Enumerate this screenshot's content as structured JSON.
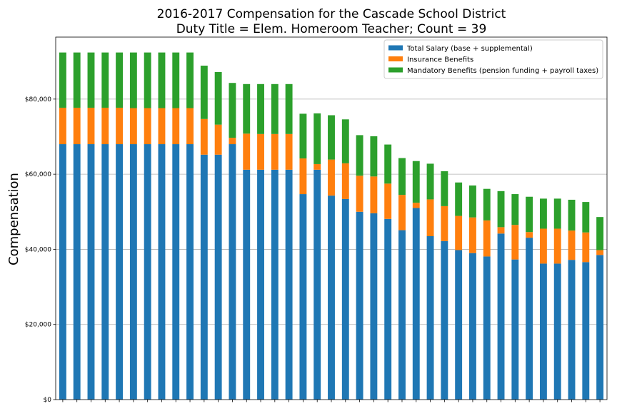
{
  "chart_data": {
    "type": "bar",
    "stacked": true,
    "title": "2016-2017 Compensation for the Cascade School District",
    "subtitle": "Duty Title = Elem. Homeroom Teacher; Count = 39",
    "xlabel": "",
    "ylabel": "Compensation",
    "ylim": [
      0,
      96500
    ],
    "yticks": [
      0,
      20000,
      40000,
      60000,
      80000
    ],
    "ytick_labels": [
      "$0",
      "$20,000",
      "$40,000",
      "$60,000",
      "$80,000"
    ],
    "grid": "y",
    "legend_position": "top-right",
    "series": [
      {
        "name": "Total Salary (base + supplemental)",
        "color": "#1f77b4",
        "values": [
          68000,
          68000,
          68000,
          68000,
          68000,
          68000,
          68000,
          68000,
          68000,
          68000,
          65200,
          65200,
          68000,
          61200,
          61200,
          61200,
          61200,
          54700,
          61200,
          54300,
          53400,
          50000,
          49600,
          48100,
          45100,
          51000,
          43500,
          42200,
          39800,
          39000,
          38100,
          44200,
          37300,
          43100,
          36200,
          36200,
          37200,
          36600,
          38500
        ]
      },
      {
        "name": "Insurance Benefits",
        "color": "#ff7f0e",
        "values": [
          9700,
          9700,
          9700,
          9700,
          9700,
          9600,
          9600,
          9600,
          9600,
          9600,
          9500,
          8000,
          1700,
          9600,
          9500,
          9500,
          9500,
          9500,
          1500,
          9600,
          9500,
          9600,
          9800,
          9400,
          9400,
          1400,
          9800,
          9300,
          9100,
          9500,
          9600,
          1700,
          9200,
          1500,
          9300,
          9300,
          7800,
          7900,
          1300
        ]
      },
      {
        "name": "Mandatory Benefits (pension funding + payroll taxes)",
        "color": "#2ca02c",
        "values": [
          14700,
          14700,
          14700,
          14700,
          14700,
          14800,
          14800,
          14800,
          14800,
          14800,
          14200,
          14000,
          14600,
          13200,
          13300,
          13300,
          13300,
          11900,
          13500,
          11800,
          11700,
          10800,
          10700,
          10400,
          9800,
          11100,
          9500,
          9300,
          8900,
          8500,
          8400,
          9600,
          8200,
          9400,
          8000,
          8000,
          8200,
          8100,
          8800
        ]
      }
    ]
  }
}
